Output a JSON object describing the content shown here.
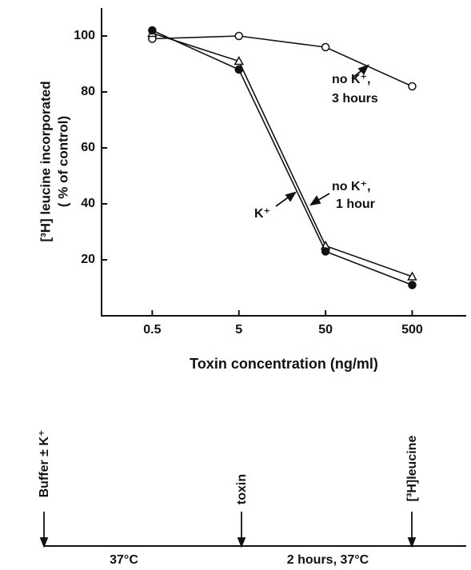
{
  "chart_data": {
    "type": "line",
    "x_label": "Toxin concentration (ng/ml)",
    "y_label": [
      "[³H] leucine incorporated",
      "( % of control)"
    ],
    "x": [
      0.5,
      5,
      50,
      500
    ],
    "xlim": [
      0.13,
      2100
    ],
    "xticks": [
      0.5,
      5,
      50,
      500
    ],
    "x_log": true,
    "ylim": [
      0,
      110
    ],
    "yticks": [
      20,
      40,
      60,
      80,
      100
    ],
    "series": [
      {
        "name": "no K⁺, 3 hours",
        "color": "#111111",
        "marker": "open-circle",
        "values": [
          99,
          100,
          96,
          82
        ]
      },
      {
        "name": "no K⁺, 1 hour",
        "color": "#111111",
        "marker": "triangle",
        "values": [
          101,
          91,
          25,
          14
        ]
      },
      {
        "name": "K⁺",
        "color": "#111111",
        "marker": "filled-circle",
        "values": [
          102,
          88,
          23,
          11
        ]
      }
    ],
    "annotations": [
      {
        "lines": [
          "no K⁺,",
          "3 hours"
        ]
      },
      {
        "lines": [
          "no K⁺,",
          "1 hour"
        ]
      },
      {
        "lines": [
          "K⁺"
        ]
      }
    ]
  },
  "timeline": {
    "events": [
      "Buffer ± K⁺",
      "toxin",
      "[³H]leucine"
    ],
    "periods": [
      "37°C",
      "2 hours, 37°C"
    ]
  }
}
